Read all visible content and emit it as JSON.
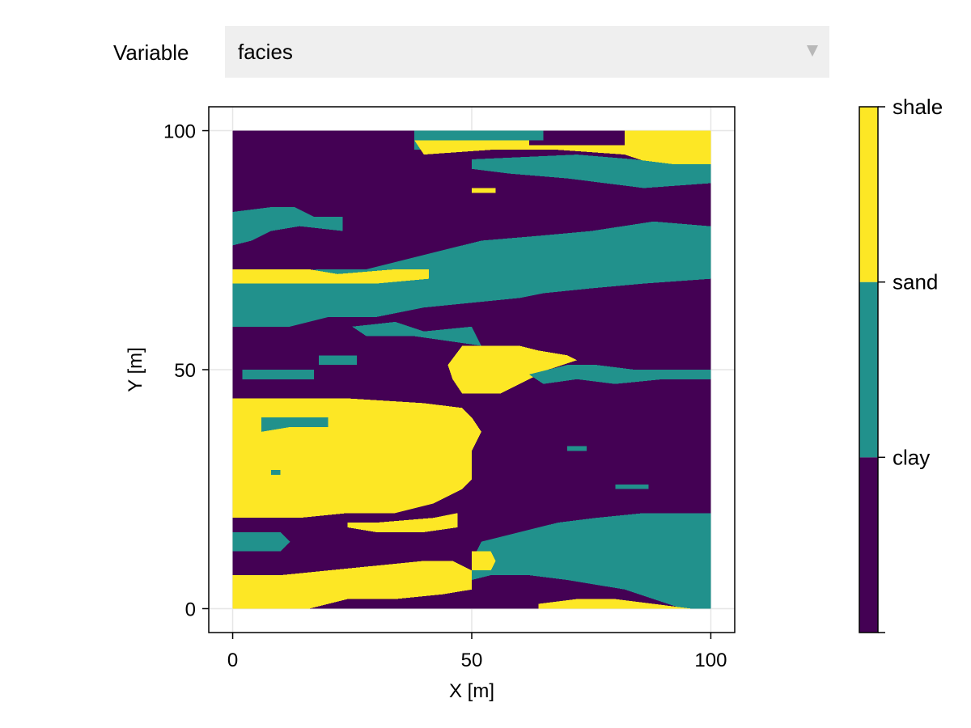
{
  "control": {
    "label": "Variable",
    "selected": "facies",
    "icon": "chevron-down-icon"
  },
  "chart_data": {
    "type": "heatmap",
    "variable": "facies",
    "xlabel": "X [m]",
    "ylabel": "Y [m]",
    "xlim": [
      -5,
      105
    ],
    "ylim": [
      -5,
      105
    ],
    "xticks": [
      "0",
      "50",
      "100"
    ],
    "yticks": [
      "0",
      "50",
      "100"
    ],
    "grid": true,
    "grid_extent": [
      0,
      100,
      0,
      100
    ],
    "categories": [
      "clay",
      "sand",
      "shale"
    ],
    "colors": {
      "clay": "#440154",
      "sand": "#21918c",
      "shale": "#fde725"
    },
    "colorbar_labels": [
      "clay",
      "sand",
      "shale"
    ],
    "colorbar_placement": "right",
    "regions": [
      {
        "category": "sand",
        "polygon": [
          [
            38,
            100
          ],
          [
            65,
            100
          ],
          [
            65,
            98
          ],
          [
            48,
            98
          ],
          [
            48,
            96
          ],
          [
            38,
            96
          ]
        ]
      },
      {
        "category": "shale",
        "polygon": [
          [
            38,
            98
          ],
          [
            62,
            98
          ],
          [
            62,
            97
          ],
          [
            100,
            97
          ],
          [
            100,
            93
          ],
          [
            88,
            93
          ],
          [
            82,
            95
          ],
          [
            68,
            96
          ],
          [
            54,
            96
          ],
          [
            40,
            95
          ]
        ]
      },
      {
        "category": "shale",
        "polygon": [
          [
            82,
            100
          ],
          [
            100,
            100
          ],
          [
            100,
            97
          ],
          [
            82,
            97
          ]
        ]
      },
      {
        "category": "sand",
        "polygon": [
          [
            50,
            94
          ],
          [
            72,
            95
          ],
          [
            84,
            94
          ],
          [
            92,
            93
          ],
          [
            100,
            93
          ],
          [
            100,
            89
          ],
          [
            86,
            88
          ],
          [
            70,
            90
          ],
          [
            58,
            91
          ],
          [
            50,
            92
          ]
        ]
      },
      {
        "category": "shale",
        "polygon": [
          [
            50,
            88
          ],
          [
            55,
            88
          ],
          [
            55,
            87
          ],
          [
            50,
            87
          ]
        ]
      },
      {
        "category": "sand",
        "polygon": [
          [
            0,
            83
          ],
          [
            8,
            84
          ],
          [
            13,
            84
          ],
          [
            17,
            82
          ],
          [
            23,
            82
          ],
          [
            23,
            79
          ],
          [
            14,
            80
          ],
          [
            8,
            79
          ],
          [
            4,
            77
          ],
          [
            0,
            76
          ]
        ]
      },
      {
        "category": "sand",
        "polygon": [
          [
            0,
            76
          ],
          [
            0,
            59
          ],
          [
            12,
            59
          ],
          [
            20,
            61
          ],
          [
            30,
            61
          ],
          [
            40,
            63
          ],
          [
            50,
            64
          ],
          [
            60,
            65
          ],
          [
            65,
            66
          ],
          [
            75,
            67
          ],
          [
            86,
            68
          ],
          [
            100,
            69
          ],
          [
            100,
            80
          ],
          [
            88,
            81
          ],
          [
            75,
            79
          ],
          [
            64,
            78
          ],
          [
            52,
            77
          ],
          [
            40,
            74
          ],
          [
            28,
            71
          ],
          [
            18,
            71
          ],
          [
            8,
            70
          ],
          [
            2,
            70
          ],
          [
            0,
            70
          ]
        ]
      },
      {
        "category": "shale",
        "polygon": [
          [
            0,
            71
          ],
          [
            16,
            71
          ],
          [
            22,
            70
          ],
          [
            34,
            71
          ],
          [
            41,
            71
          ],
          [
            41,
            69
          ],
          [
            30,
            68
          ],
          [
            22,
            68
          ],
          [
            12,
            68
          ],
          [
            4,
            68
          ],
          [
            0,
            68
          ]
        ]
      },
      {
        "category": "sand",
        "polygon": [
          [
            25,
            59
          ],
          [
            34,
            60
          ],
          [
            40,
            58
          ],
          [
            50,
            59
          ],
          [
            52,
            55
          ],
          [
            45,
            56
          ],
          [
            38,
            57
          ],
          [
            28,
            57
          ]
        ]
      },
      {
        "category": "sand",
        "polygon": [
          [
            18,
            53
          ],
          [
            26,
            53
          ],
          [
            26,
            51
          ],
          [
            18,
            51
          ]
        ]
      },
      {
        "category": "sand",
        "polygon": [
          [
            2,
            50
          ],
          [
            17,
            50
          ],
          [
            17,
            48
          ],
          [
            2,
            48
          ]
        ]
      },
      {
        "category": "shale",
        "polygon": [
          [
            48,
            55
          ],
          [
            60,
            55
          ],
          [
            64,
            54
          ],
          [
            70,
            53
          ],
          [
            72,
            52
          ],
          [
            66,
            50
          ],
          [
            62,
            48
          ],
          [
            56,
            45
          ],
          [
            48,
            45
          ],
          [
            46,
            48
          ],
          [
            45,
            51
          ]
        ]
      },
      {
        "category": "sand",
        "polygon": [
          [
            62,
            49
          ],
          [
            70,
            51
          ],
          [
            76,
            51
          ],
          [
            84,
            50
          ],
          [
            100,
            50
          ],
          [
            100,
            48
          ],
          [
            90,
            48
          ],
          [
            80,
            47
          ],
          [
            72,
            48
          ],
          [
            65,
            47
          ]
        ]
      },
      {
        "category": "shale",
        "polygon": [
          [
            0,
            44
          ],
          [
            14,
            44
          ],
          [
            24,
            44
          ],
          [
            40,
            43
          ],
          [
            48,
            42
          ],
          [
            50,
            40
          ],
          [
            52,
            37
          ],
          [
            50,
            33
          ],
          [
            50,
            27
          ],
          [
            48,
            25
          ],
          [
            42,
            22
          ],
          [
            34,
            20
          ],
          [
            24,
            20
          ],
          [
            14,
            19
          ],
          [
            0,
            19
          ]
        ]
      },
      {
        "category": "sand",
        "polygon": [
          [
            6,
            40
          ],
          [
            12,
            40
          ],
          [
            20,
            40
          ],
          [
            20,
            38
          ],
          [
            12,
            38
          ],
          [
            6,
            37
          ]
        ]
      },
      {
        "category": "sand",
        "polygon": [
          [
            8,
            29
          ],
          [
            10,
            29
          ],
          [
            10,
            28
          ],
          [
            8,
            28
          ]
        ]
      },
      {
        "category": "shale",
        "polygon": [
          [
            24,
            18
          ],
          [
            30,
            18
          ],
          [
            42,
            19
          ],
          [
            47,
            20
          ],
          [
            47,
            17
          ],
          [
            40,
            16
          ],
          [
            30,
            16
          ],
          [
            24,
            17
          ]
        ]
      },
      {
        "category": "sand",
        "polygon": [
          [
            50,
            10
          ],
          [
            52,
            14
          ],
          [
            60,
            16
          ],
          [
            68,
            18
          ],
          [
            76,
            19
          ],
          [
            86,
            20
          ],
          [
            100,
            20
          ],
          [
            100,
            0
          ],
          [
            94,
            0
          ],
          [
            88,
            2
          ],
          [
            82,
            4
          ],
          [
            76,
            5
          ],
          [
            70,
            6
          ],
          [
            62,
            7
          ],
          [
            54,
            7
          ],
          [
            50,
            6
          ]
        ]
      },
      {
        "category": "sand",
        "polygon": [
          [
            0,
            16
          ],
          [
            10,
            16
          ],
          [
            12,
            14
          ],
          [
            10,
            12
          ],
          [
            4,
            12
          ],
          [
            0,
            12
          ]
        ]
      },
      {
        "category": "shale",
        "polygon": [
          [
            0,
            7
          ],
          [
            10,
            7
          ],
          [
            20,
            8
          ],
          [
            30,
            9
          ],
          [
            40,
            10
          ],
          [
            46,
            10
          ],
          [
            50,
            8
          ],
          [
            50,
            4
          ],
          [
            44,
            3
          ],
          [
            34,
            2
          ],
          [
            24,
            2
          ],
          [
            16,
            0
          ],
          [
            0,
            0
          ]
        ]
      },
      {
        "category": "shale",
        "polygon": [
          [
            50,
            12
          ],
          [
            54,
            12
          ],
          [
            55,
            10
          ],
          [
            54,
            8
          ],
          [
            50,
            8
          ]
        ]
      },
      {
        "category": "shale",
        "polygon": [
          [
            64,
            1
          ],
          [
            72,
            2
          ],
          [
            80,
            2
          ],
          [
            88,
            1
          ],
          [
            96,
            0
          ],
          [
            96,
            0
          ],
          [
            64,
            0
          ]
        ]
      },
      {
        "category": "sand",
        "polygon": [
          [
            70,
            34
          ],
          [
            74,
            34
          ],
          [
            74,
            33
          ],
          [
            70,
            33
          ]
        ]
      },
      {
        "category": "sand",
        "polygon": [
          [
            80,
            26
          ],
          [
            87,
            26
          ],
          [
            87,
            25
          ],
          [
            80,
            25
          ]
        ]
      }
    ]
  }
}
